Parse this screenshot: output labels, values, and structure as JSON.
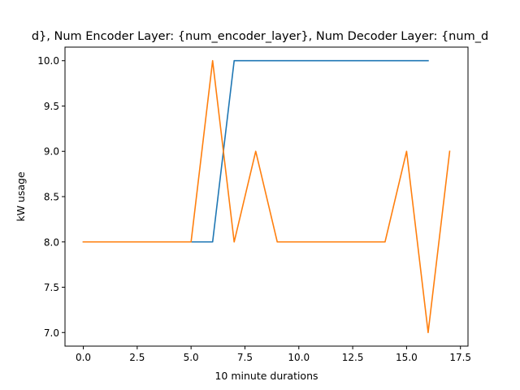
{
  "chart_data": {
    "type": "line",
    "title": "d}, Num Encoder Layer: {num_encoder_layer}, Num Decoder Layer: {num_d",
    "xlabel": "10 minute durations",
    "ylabel": "kW usage",
    "xlim": [
      -0.85,
      17.85
    ],
    "ylim": [
      6.85,
      10.15
    ],
    "xticks": [
      0.0,
      2.5,
      5.0,
      7.5,
      10.0,
      12.5,
      15.0,
      17.5
    ],
    "xtick_labels": [
      "0.0",
      "2.5",
      "5.0",
      "7.5",
      "10.0",
      "12.5",
      "15.0",
      "17.5"
    ],
    "yticks": [
      7.0,
      7.5,
      8.0,
      8.5,
      9.0,
      9.5,
      10.0
    ],
    "ytick_labels": [
      "7.0",
      "7.5",
      "8.0",
      "8.5",
      "9.0",
      "9.5",
      "10.0"
    ],
    "grid": false,
    "series": [
      {
        "color": "#1f77b4",
        "x": [
          0,
          1,
          2,
          3,
          4,
          5,
          6,
          7,
          8,
          9,
          10,
          11,
          12,
          13,
          14,
          15,
          16
        ],
        "y": [
          8,
          8,
          8,
          8,
          8,
          8,
          8,
          10,
          10,
          10,
          10,
          10,
          10,
          10,
          10,
          10,
          10
        ]
      },
      {
        "color": "#ff7f0e",
        "x": [
          0,
          1,
          2,
          3,
          4,
          5,
          6,
          7,
          8,
          9,
          10,
          11,
          12,
          13,
          14,
          15,
          16,
          17
        ],
        "y": [
          8,
          8,
          8,
          8,
          8,
          8,
          10,
          8,
          9,
          8,
          8,
          8,
          8,
          8,
          8,
          9,
          7,
          9
        ]
      }
    ]
  }
}
